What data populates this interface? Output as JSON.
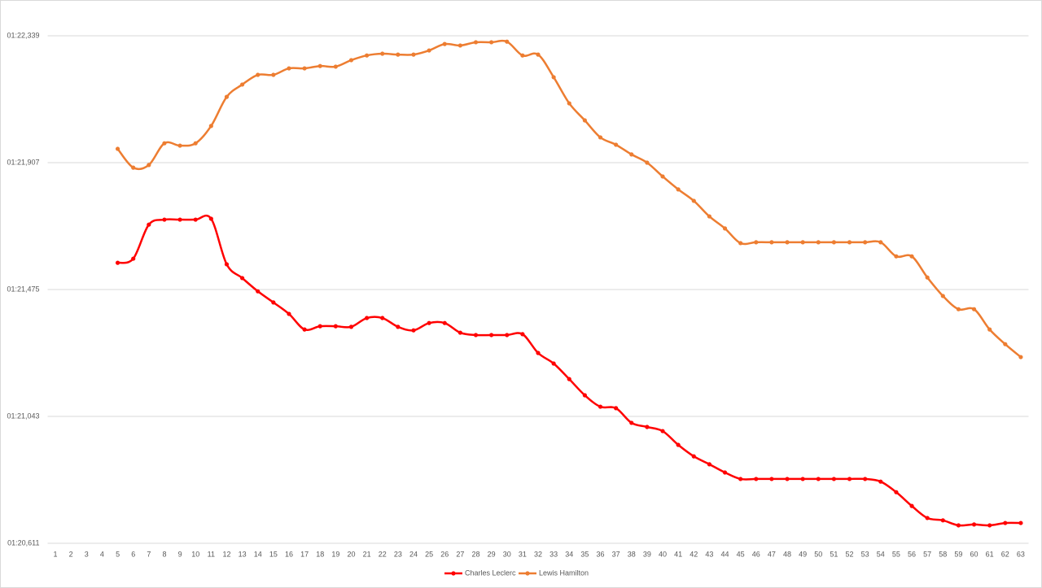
{
  "chart_data": {
    "type": "line",
    "categories": [
      "1",
      "2",
      "3",
      "4",
      "5",
      "6",
      "7",
      "8",
      "9",
      "10",
      "11",
      "12",
      "13",
      "14",
      "15",
      "16",
      "17",
      "18",
      "19",
      "20",
      "21",
      "22",
      "23",
      "24",
      "25",
      "26",
      "27",
      "28",
      "29",
      "30",
      "31",
      "32",
      "33",
      "34",
      "35",
      "36",
      "37",
      "38",
      "39",
      "40",
      "41",
      "42",
      "43",
      "44",
      "45",
      "46",
      "47",
      "48",
      "49",
      "50",
      "51",
      "52",
      "53",
      "54",
      "55",
      "56",
      "57",
      "58",
      "59",
      "60",
      "61",
      "62",
      "63"
    ],
    "series": [
      {
        "name": "Charles Leclerc",
        "color": "#ff0000",
        "values": [
          null,
          null,
          null,
          null,
          81.566,
          81.58,
          81.696,
          81.713,
          81.713,
          81.713,
          81.716,
          81.561,
          81.514,
          81.469,
          81.431,
          81.392,
          81.339,
          81.35,
          81.35,
          81.348,
          81.378,
          81.378,
          81.348,
          81.336,
          81.361,
          81.361,
          81.328,
          81.32,
          81.32,
          81.32,
          81.323,
          81.259,
          81.223,
          81.17,
          81.115,
          81.076,
          81.071,
          81.021,
          81.007,
          80.993,
          80.946,
          80.907,
          80.88,
          80.852,
          80.83,
          80.83,
          80.83,
          80.83,
          80.83,
          80.83,
          80.83,
          80.83,
          80.83,
          80.821,
          80.785,
          80.738,
          80.697,
          80.689,
          80.672,
          80.675,
          80.672,
          80.68,
          80.68
        ]
      },
      {
        "name": "Lewis Hamilton",
        "color": "#ed7d31",
        "values": [
          null,
          null,
          null,
          null,
          81.954,
          81.89,
          81.899,
          81.973,
          81.965,
          81.973,
          82.032,
          82.131,
          82.173,
          82.206,
          82.206,
          82.228,
          82.228,
          82.236,
          82.234,
          82.256,
          82.272,
          82.278,
          82.275,
          82.275,
          82.289,
          82.311,
          82.306,
          82.317,
          82.317,
          82.319,
          82.272,
          82.275,
          82.198,
          82.109,
          82.051,
          81.993,
          81.968,
          81.935,
          81.907,
          81.86,
          81.816,
          81.777,
          81.724,
          81.683,
          81.633,
          81.636,
          81.636,
          81.636,
          81.636,
          81.636,
          81.636,
          81.636,
          81.636,
          81.636,
          81.588,
          81.588,
          81.516,
          81.453,
          81.408,
          81.408,
          81.339,
          81.289,
          81.245
        ]
      }
    ],
    "ylim": [
      80.611,
      82.339
    ],
    "yticks": [
      {
        "value": 80.611,
        "label": "01:20,611"
      },
      {
        "value": 81.043,
        "label": "01:21,043"
      },
      {
        "value": 81.475,
        "label": "01:21,475"
      },
      {
        "value": 81.907,
        "label": "01:21,907"
      },
      {
        "value": 82.339,
        "label": "01:22,339"
      }
    ],
    "grid": true,
    "legend": "bottom",
    "smooth": true
  }
}
